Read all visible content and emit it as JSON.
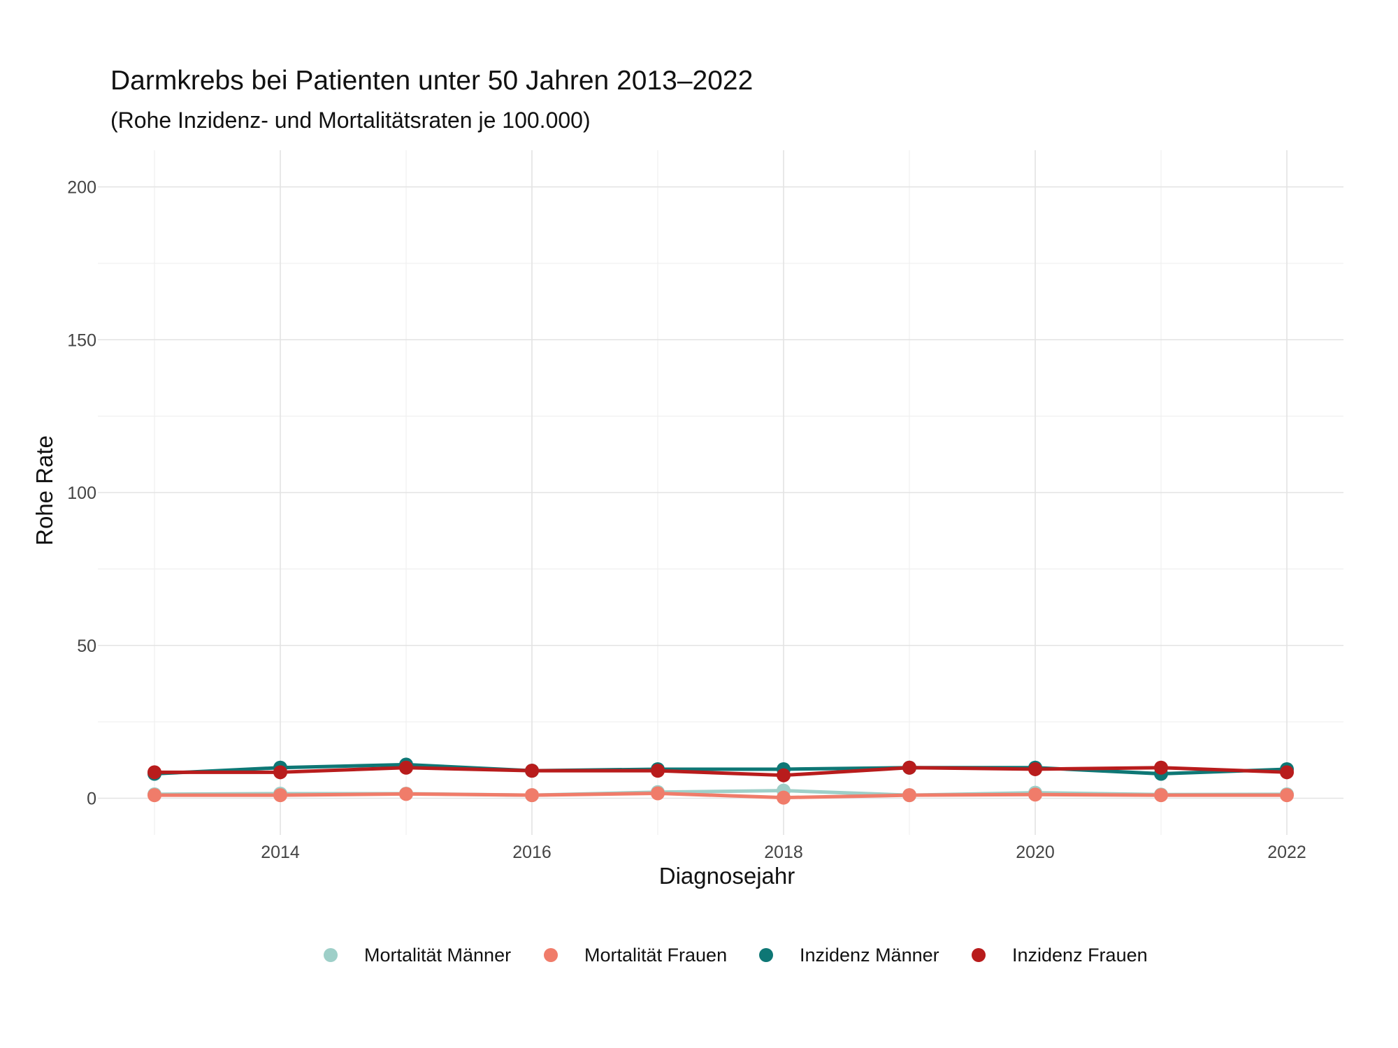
{
  "chart_data": {
    "type": "line",
    "title": "Darmkrebs bei Patienten unter 50 Jahren 2013–2022",
    "subtitle": "(Rohe Inzidenz- und Mortalitätsraten je 100.000)",
    "xlabel": "Diagnosejahr",
    "ylabel": "Rohe Rate",
    "x": [
      2013,
      2014,
      2015,
      2016,
      2017,
      2018,
      2019,
      2020,
      2021,
      2022
    ],
    "xlim": [
      2012.55,
      2022.45
    ],
    "ylim": [
      -12,
      212
    ],
    "x_ticks": [
      "2014",
      "2016",
      "2018",
      "2020",
      "2022"
    ],
    "y_ticks": [
      "0",
      "50",
      "100",
      "150",
      "200"
    ],
    "grid": true,
    "legend_position": "bottom",
    "series": [
      {
        "name": "Mortalität Männer",
        "color": "#9ecfc8",
        "values": [
          1.3,
          1.5,
          1.5,
          1.0,
          2.0,
          2.5,
          1.0,
          1.8,
          1.2,
          1.3
        ]
      },
      {
        "name": "Mortalität Frauen",
        "color": "#f07c6a",
        "values": [
          1.0,
          1.0,
          1.4,
          1.0,
          1.6,
          0.2,
          1.0,
          1.2,
          1.0,
          1.0
        ]
      },
      {
        "name": "Inzidenz Männer",
        "color": "#0e7775",
        "values": [
          8.0,
          10.0,
          11.0,
          9.0,
          9.5,
          9.5,
          10.0,
          10.0,
          8.0,
          9.5
        ]
      },
      {
        "name": "Inzidenz Frauen",
        "color": "#b81c1c",
        "values": [
          8.5,
          8.5,
          10.0,
          9.0,
          9.0,
          7.5,
          10.0,
          9.5,
          10.0,
          8.5
        ]
      }
    ]
  }
}
